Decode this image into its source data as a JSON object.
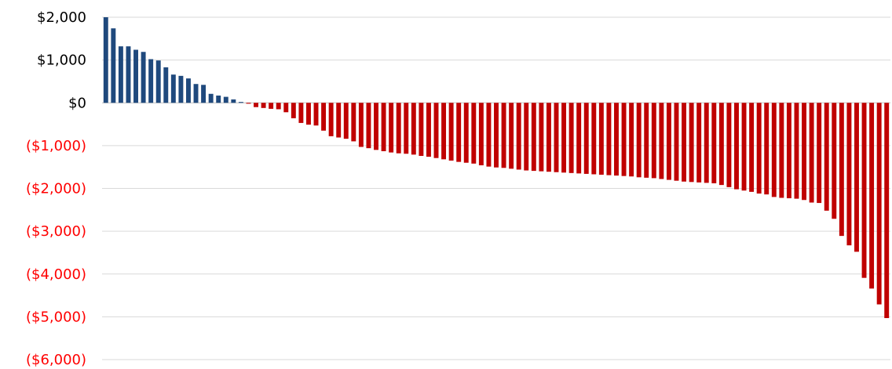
{
  "chart_data": {
    "type": "bar",
    "title": "",
    "xlabel": "",
    "ylabel": "",
    "ylim": [
      -6000,
      2000
    ],
    "grid": true,
    "legend": "none",
    "y_ticks": [
      {
        "value": 2000,
        "label": "$2,000"
      },
      {
        "value": 1000,
        "label": "$1,000"
      },
      {
        "value": 0,
        "label": "$0"
      },
      {
        "value": -1000,
        "label": "($1,000)"
      },
      {
        "value": -2000,
        "label": "($2,000)"
      },
      {
        "value": -3000,
        "label": "($3,000)"
      },
      {
        "value": -4000,
        "label": "($4,000)"
      },
      {
        "value": -5000,
        "label": "($5,000)"
      },
      {
        "value": -6000,
        "label": "($6,000)"
      }
    ],
    "values": [
      2000,
      1740,
      1320,
      1320,
      1240,
      1190,
      1020,
      990,
      830,
      660,
      630,
      570,
      440,
      420,
      210,
      170,
      140,
      80,
      20,
      -20,
      -100,
      -120,
      -140,
      -150,
      -220,
      -360,
      -470,
      -510,
      -530,
      -650,
      -780,
      -810,
      -840,
      -900,
      -1030,
      -1060,
      -1100,
      -1130,
      -1160,
      -1180,
      -1190,
      -1210,
      -1240,
      -1260,
      -1290,
      -1320,
      -1350,
      -1380,
      -1400,
      -1420,
      -1460,
      -1490,
      -1510,
      -1520,
      -1540,
      -1560,
      -1580,
      -1590,
      -1600,
      -1610,
      -1620,
      -1630,
      -1640,
      -1650,
      -1660,
      -1670,
      -1680,
      -1690,
      -1700,
      -1710,
      -1720,
      -1740,
      -1750,
      -1760,
      -1780,
      -1800,
      -1820,
      -1840,
      -1850,
      -1860,
      -1870,
      -1880,
      -1920,
      -1970,
      -2020,
      -2050,
      -2080,
      -2120,
      -2140,
      -2200,
      -2220,
      -2230,
      -2240,
      -2270,
      -2330,
      -2340,
      -2520,
      -2710,
      -3110,
      -3330,
      -3480,
      -4090,
      -4340,
      -4710,
      -5030
    ],
    "colors": {
      "positive_bar": "#1f497d",
      "negative_bar": "#c00000",
      "positive_label": "#000000",
      "negative_label": "#ff0000",
      "gridline": "#d9d9d9",
      "zero_line": "#bfbfbf"
    }
  }
}
